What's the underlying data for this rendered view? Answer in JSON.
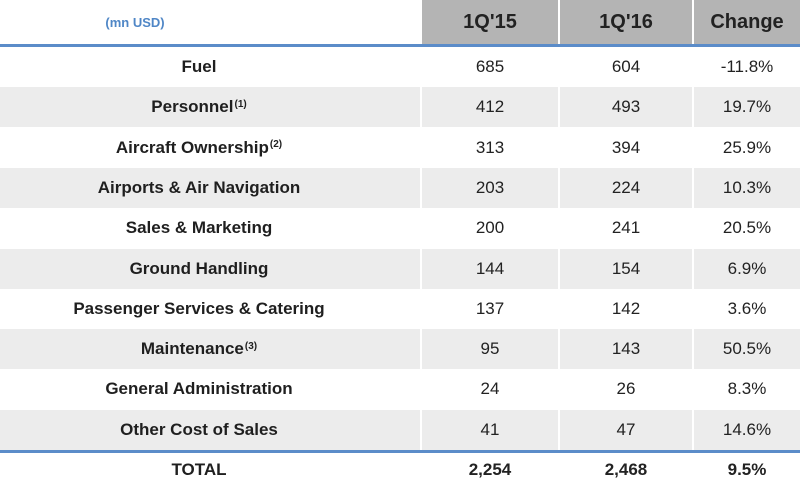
{
  "table": {
    "unit_label": "(mn USD)",
    "columns": [
      "1Q'15",
      "1Q'16",
      "Change"
    ],
    "rows": [
      {
        "label": "Fuel",
        "note": "",
        "q15": "685",
        "q16": "604",
        "change": "-11.8%"
      },
      {
        "label": "Personnel",
        "note": "(1)",
        "q15": "412",
        "q16": "493",
        "change": "19.7%"
      },
      {
        "label": "Aircraft Ownership",
        "note": "(2)",
        "q15": "313",
        "q16": "394",
        "change": "25.9%"
      },
      {
        "label": "Airports & Air Navigation",
        "note": "",
        "q15": "203",
        "q16": "224",
        "change": "10.3%"
      },
      {
        "label": "Sales & Marketing",
        "note": "",
        "q15": "200",
        "q16": "241",
        "change": "20.5%"
      },
      {
        "label": "Ground Handling",
        "note": "",
        "q15": "144",
        "q16": "154",
        "change": "6.9%"
      },
      {
        "label": "Passenger Services & Catering",
        "note": "",
        "q15": "137",
        "q16": "142",
        "change": "3.6%"
      },
      {
        "label": "Maintenance",
        "note": "(3)",
        "q15": "95",
        "q16": "143",
        "change": "50.5%"
      },
      {
        "label": "General Administration",
        "note": "",
        "q15": "24",
        "q16": "26",
        "change": "8.3%"
      },
      {
        "label": "Other Cost of Sales",
        "note": "",
        "q15": "41",
        "q16": "47",
        "change": "14.6%"
      }
    ],
    "total": {
      "label": "TOTAL",
      "q15": "2,254",
      "q16": "2,468",
      "change": "9.5%"
    }
  },
  "colors": {
    "header_bg": "#b4b4b4",
    "accent_line": "#5b8cc9",
    "unit_text": "#4f86c6",
    "row_shade": "#ececec"
  }
}
